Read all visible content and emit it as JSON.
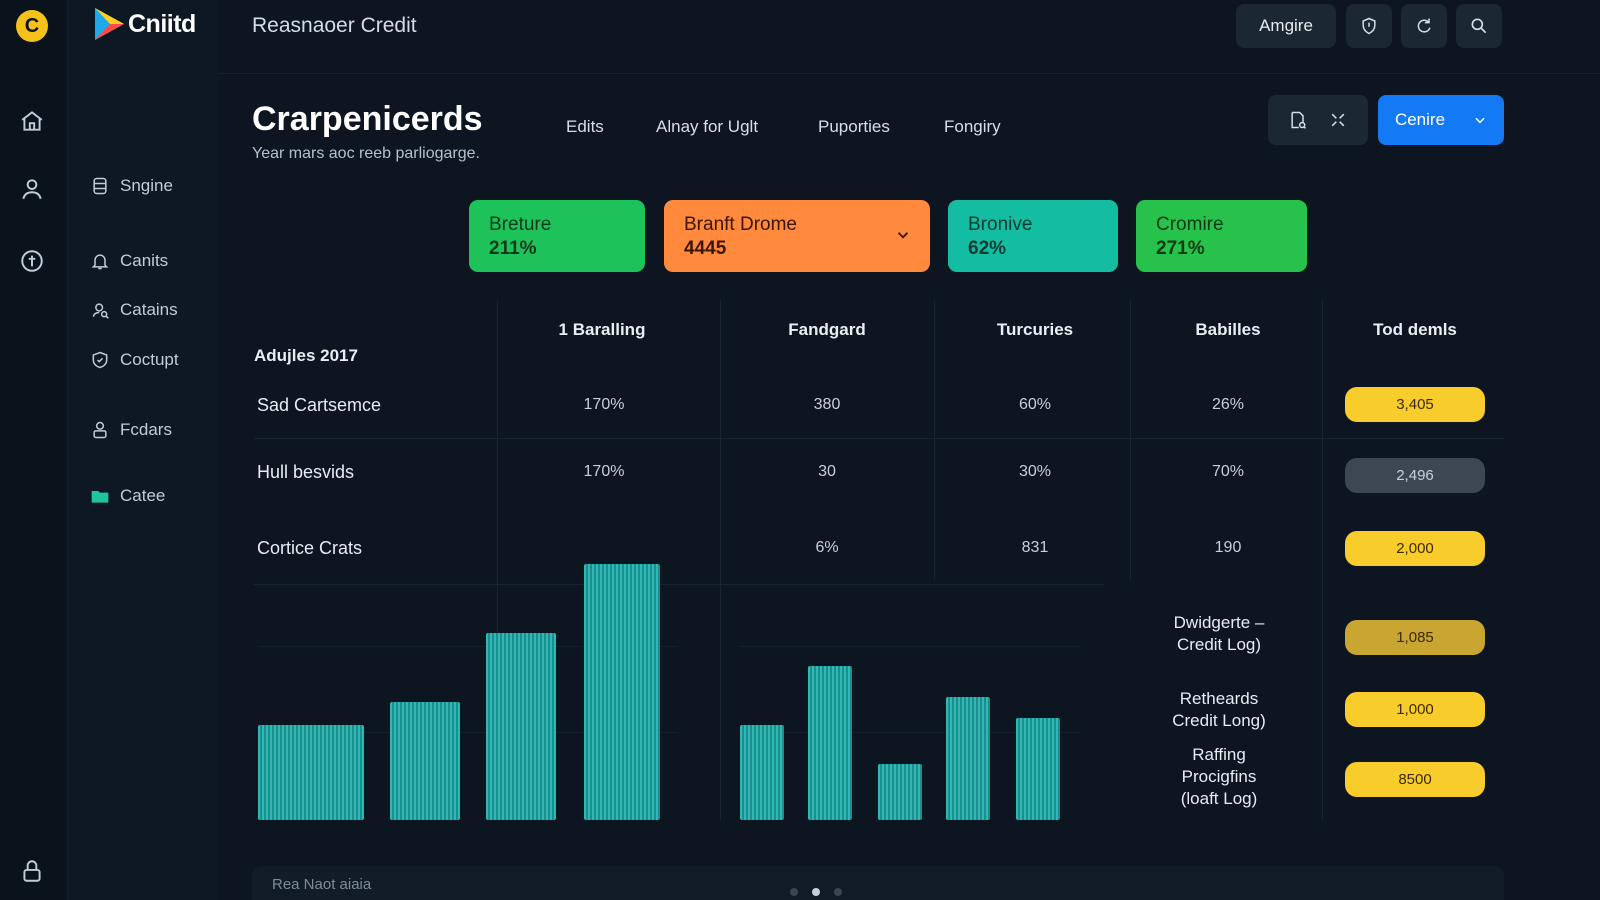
{
  "app": {
    "rail_logo": "C",
    "brand": "Cniitd",
    "title": "Reasnaoer Credit"
  },
  "topbar": {
    "primary_label": "Amgire"
  },
  "nav": {
    "items": [
      {
        "label": "Sngine",
        "icon": "database-icon"
      },
      {
        "label": "Canits",
        "icon": "bell-icon"
      },
      {
        "label": "Catains",
        "icon": "user-search-icon"
      },
      {
        "label": "Coctupt",
        "icon": "shield-icon"
      },
      {
        "label": "Fcdars",
        "icon": "lock-user-icon"
      },
      {
        "label": "Catee",
        "icon": "folder-icon"
      }
    ]
  },
  "header": {
    "title": "Crarpenicerds",
    "subtitle": "Year mars aoc reeb parliogarge.",
    "tabs": [
      "Edits",
      "Alnay for Uglt",
      "Puporties",
      "Fongiry"
    ],
    "primary_button": "Cenire"
  },
  "cards": [
    {
      "label": "Breture",
      "value": "211%",
      "color": "#1dc25a"
    },
    {
      "label": "Branft Drome",
      "value": "4445",
      "color": "#ff8a3d"
    },
    {
      "label": "Bronive",
      "value": "62%",
      "color": "#13bda2"
    },
    {
      "label": "Cromire",
      "value": "271%",
      "color": "#27c24c"
    }
  ],
  "table": {
    "section_label": "Adujles 2017",
    "columns": [
      "1 Baralling",
      "Fandgard",
      "Turcuries",
      "Babilles",
      "Tod demls"
    ],
    "rows": [
      {
        "label": "Sad Cartsemce",
        "cells": [
          "170%",
          "380",
          "60%",
          "26%"
        ],
        "total": "3,405",
        "total_style": "y"
      },
      {
        "label": "Hull besvids",
        "cells": [
          "170%",
          "30",
          "30%",
          "70%"
        ],
        "total": "2,496",
        "total_style": "g"
      },
      {
        "label": "Cortice Crats",
        "cells": [
          "",
          "6%",
          "831",
          "190"
        ],
        "total": "2,000",
        "total_style": "y"
      }
    ],
    "side_rows": [
      {
        "lines": [
          "Dwidgerte –",
          "Credit Log)"
        ],
        "value": "1,085",
        "style": "o"
      },
      {
        "lines": [
          "Retheards",
          "Credit Long)"
        ],
        "value": "1,000",
        "style": "y"
      },
      {
        "lines": [
          "Raffing",
          "Procigfins",
          "(loaft Log)"
        ],
        "value": "8500",
        "style": "y"
      }
    ]
  },
  "chart_data": [
    {
      "type": "bar",
      "categories": [
        "",
        "",
        "",
        ""
      ],
      "values": [
        37,
        46,
        73,
        100
      ],
      "title": "",
      "xlabel": "",
      "ylabel": "",
      "ylim": [
        0,
        100
      ],
      "grid": true
    },
    {
      "type": "bar",
      "categories": [
        "",
        "",
        "",
        "",
        ""
      ],
      "values": [
        37,
        60,
        22,
        48,
        40
      ],
      "title": "",
      "xlabel": "",
      "ylabel": "",
      "ylim": [
        0,
        100
      ],
      "grid": true
    }
  ],
  "bottom": {
    "text": "Rea Naot aiaia",
    "page_count": 3,
    "active_page": 2
  }
}
